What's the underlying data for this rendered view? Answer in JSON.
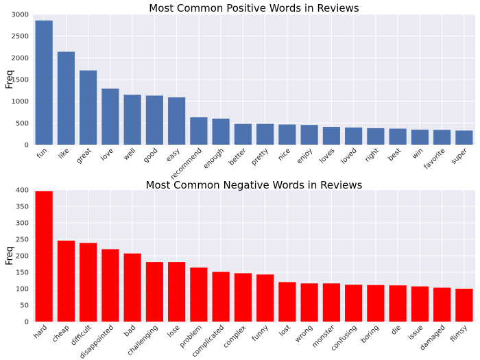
{
  "chart_data": [
    {
      "type": "bar",
      "title": "Most Common Positive Words in Reviews",
      "xlabel": "",
      "ylabel": "Freq",
      "ylim": [
        0,
        3000
      ],
      "yticks": [
        0,
        500,
        1000,
        1500,
        2000,
        2500,
        3000
      ],
      "grid": true,
      "color": "#4c72b0",
      "categories": [
        "fun",
        "like",
        "great",
        "love",
        "well",
        "good",
        "easy",
        "recommend",
        "enough",
        "better",
        "pretty",
        "nice",
        "enjoy",
        "loves",
        "loved",
        "right",
        "best",
        "win",
        "favorite",
        "super"
      ],
      "values": [
        2860,
        2140,
        1710,
        1290,
        1150,
        1130,
        1090,
        630,
        600,
        480,
        480,
        465,
        455,
        410,
        395,
        380,
        370,
        345,
        340,
        325
      ]
    },
    {
      "type": "bar",
      "title": "Most Common Negative Words in Reviews",
      "xlabel": "",
      "ylabel": "Freq",
      "ylim": [
        0,
        400
      ],
      "yticks": [
        0,
        50,
        100,
        150,
        200,
        250,
        300,
        350,
        400
      ],
      "grid": true,
      "color": "#ff0000",
      "categories": [
        "hard",
        "cheap",
        "difficult",
        "disappointed",
        "bad",
        "challenging",
        "lose",
        "problem",
        "complicated",
        "complex",
        "funny",
        "lost",
        "wrong",
        "monster",
        "confusing",
        "boring",
        "die",
        "issue",
        "damaged",
        "flimsy"
      ],
      "values": [
        396,
        246,
        239,
        220,
        207,
        181,
        181,
        164,
        151,
        147,
        143,
        120,
        116,
        116,
        112,
        111,
        110,
        107,
        103,
        100
      ]
    }
  ]
}
